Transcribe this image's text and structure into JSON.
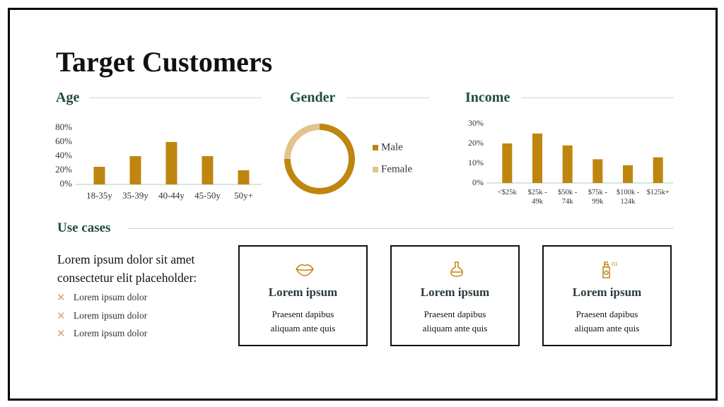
{
  "title": "Target Customers",
  "chart_data": [
    {
      "type": "bar",
      "title": "Age",
      "categories": [
        "18-35y",
        "35-39y",
        "40-44y",
        "45-50y",
        "50y+"
      ],
      "values": [
        25,
        40,
        60,
        40,
        20
      ],
      "color": "#bf860f",
      "ylim": [
        0,
        80
      ],
      "yticks": [
        {
          "value": 0,
          "label": "0%"
        },
        {
          "value": 20,
          "label": "20%"
        },
        {
          "value": 40,
          "label": "40%"
        },
        {
          "value": 60,
          "label": "60%"
        },
        {
          "value": 80,
          "label": "80%"
        }
      ],
      "grid": false
    },
    {
      "type": "donut",
      "title": "Gender",
      "categories": [
        "Male",
        "Female"
      ],
      "values": [
        75,
        25
      ],
      "colors": [
        "#bf860f",
        "#e2c48c"
      ],
      "legend": "right"
    },
    {
      "type": "bar",
      "title": "Income",
      "categories": [
        "<$25k",
        "$25k - 49k",
        "$50k - 74k",
        "$75k - 99k",
        "$100k - 124k",
        "$125k+"
      ],
      "values": [
        20,
        25,
        19,
        12,
        9,
        13
      ],
      "color": "#bf860f",
      "ylim": [
        0,
        30
      ],
      "yticks": [
        {
          "value": 0,
          "label": "0%"
        },
        {
          "value": 10,
          "label": "10%"
        },
        {
          "value": 20,
          "label": "20%"
        },
        {
          "value": 30,
          "label": "30%"
        }
      ],
      "grid": false
    }
  ],
  "use_cases": {
    "heading": "Use cases",
    "intro": "Lorem ipsum dolor sit amet consectetur elit placeholder:",
    "bullets": [
      "Lorem ipsum dolor",
      "Lorem ipsum dolor",
      "Lorem ipsum dolor"
    ],
    "cards": [
      {
        "title": "Lorem ipsum",
        "text": "Praesent dapibus aliquam ante quis"
      },
      {
        "title": "Lorem ipsum",
        "text": "Praesent dapibus aliquam ante quis"
      },
      {
        "title": "Lorem ipsum",
        "text": "Praesent dapibus aliquam ante quis"
      }
    ]
  }
}
